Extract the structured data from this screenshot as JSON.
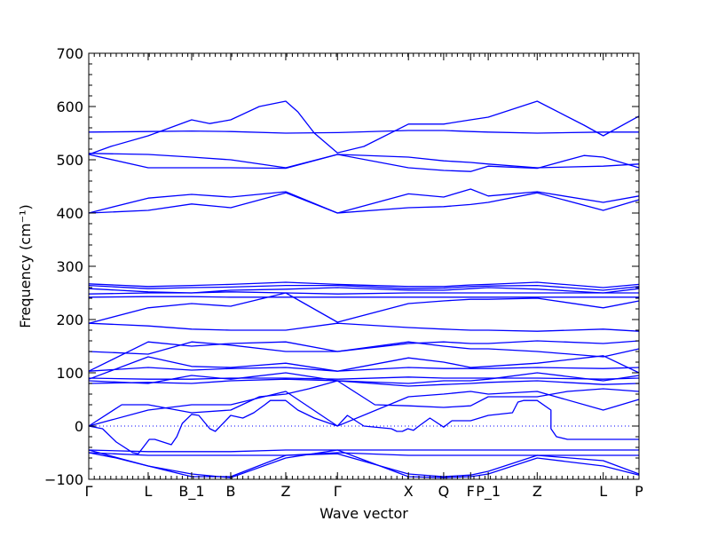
{
  "chart_data": {
    "type": "line",
    "title": "",
    "xlabel": "Wave vector",
    "ylabel": "Frequency (cm⁻¹)",
    "ylim": [
      -100,
      700
    ],
    "yticks": [
      -100,
      0,
      100,
      200,
      300,
      400,
      500,
      600,
      700
    ],
    "x_points": [
      {
        "label": "Γ",
        "x": 0.0
      },
      {
        "label": "L",
        "x": 0.108
      },
      {
        "label": "B_1",
        "x": 0.187
      },
      {
        "label": "B",
        "x": 0.258
      },
      {
        "label": "Z",
        "x": 0.358
      },
      {
        "label": "Γ",
        "x": 0.452
      },
      {
        "label": "X",
        "x": 0.581
      },
      {
        "label": "Q",
        "x": 0.645
      },
      {
        "label": "F",
        "x": 0.694
      },
      {
        "label": "P_1",
        "x": 0.726
      },
      {
        "label": "Z",
        "x": 0.815
      },
      {
        "label": "L",
        "x": 0.935
      },
      {
        "label": "P",
        "x": 1.0
      }
    ],
    "zero_line": {
      "y": 0,
      "style": "dotted"
    },
    "line_color": "#0000ff",
    "series": [
      {
        "x": [
          0,
          0.108,
          0.187,
          0.258,
          0.358,
          0.452,
          0.581,
          0.645,
          0.694,
          0.726,
          0.815,
          0.935,
          1.0
        ],
        "y": [
          552,
          553,
          554,
          553,
          550,
          551,
          555,
          555,
          553,
          552,
          550,
          552,
          552
        ]
      },
      {
        "x": [
          0,
          0.04,
          0.108,
          0.187,
          0.22,
          0.258,
          0.31,
          0.358,
          0.38,
          0.41,
          0.452,
          0.5,
          0.581,
          0.645,
          0.694,
          0.726,
          0.815,
          0.9,
          0.935,
          1.0
        ],
        "y": [
          510,
          525,
          545,
          575,
          568,
          575,
          600,
          610,
          590,
          550,
          513,
          525,
          567,
          567,
          575,
          580,
          610,
          565,
          545,
          582
        ]
      },
      {
        "x": [
          0,
          0.108,
          0.187,
          0.258,
          0.358,
          0.452,
          0.581,
          0.645,
          0.694,
          0.726,
          0.815,
          0.935,
          1.0
        ],
        "y": [
          512,
          510,
          505,
          500,
          485,
          510,
          505,
          498,
          495,
          492,
          485,
          488,
          492
        ]
      },
      {
        "x": [
          0,
          0.108,
          0.187,
          0.258,
          0.358,
          0.452,
          0.581,
          0.645,
          0.694,
          0.726,
          0.815,
          0.9,
          0.935,
          1.0
        ],
        "y": [
          510,
          485,
          485,
          485,
          484,
          510,
          485,
          480,
          478,
          488,
          484,
          508,
          505,
          485
        ]
      },
      {
        "x": [
          0,
          0.108,
          0.187,
          0.258,
          0.358,
          0.452,
          0.581,
          0.645,
          0.694,
          0.726,
          0.815,
          0.935,
          1.0
        ],
        "y": [
          400,
          428,
          435,
          430,
          440,
          400,
          436,
          430,
          445,
          432,
          440,
          420,
          432
        ]
      },
      {
        "x": [
          0,
          0.108,
          0.187,
          0.258,
          0.358,
          0.452,
          0.581,
          0.645,
          0.694,
          0.726,
          0.815,
          0.935,
          1.0
        ],
        "y": [
          400,
          405,
          417,
          410,
          438,
          400,
          410,
          412,
          416,
          420,
          438,
          405,
          425
        ]
      },
      {
        "x": [
          0,
          0.108,
          0.187,
          0.258,
          0.358,
          0.452,
          0.581,
          0.645,
          0.694,
          0.726,
          0.815,
          0.935,
          1.0
        ],
        "y": [
          267,
          262,
          264,
          266,
          270,
          266,
          262,
          262,
          265,
          266,
          270,
          260,
          266
        ]
      },
      {
        "x": [
          0,
          0.108,
          0.187,
          0.258,
          0.358,
          0.452,
          0.581,
          0.645,
          0.694,
          0.726,
          0.815,
          0.935,
          1.0
        ],
        "y": [
          264,
          258,
          260,
          261,
          264,
          264,
          258,
          259,
          262,
          263,
          264,
          255,
          262
        ]
      },
      {
        "x": [
          0,
          0.108,
          0.187,
          0.258,
          0.358,
          0.452,
          0.581,
          0.645,
          0.694,
          0.726,
          0.815,
          0.935,
          1.0
        ],
        "y": [
          258,
          252,
          250,
          255,
          257,
          260,
          255,
          255,
          258,
          260,
          257,
          250,
          258
        ]
      },
      {
        "x": [
          0,
          0.108,
          0.187,
          0.258,
          0.358,
          0.452,
          0.581,
          0.645,
          0.694,
          0.726,
          0.815,
          0.935,
          1.0
        ],
        "y": [
          248,
          250,
          250,
          252,
          250,
          248,
          250,
          250,
          250,
          250,
          250,
          250,
          250
        ]
      },
      {
        "x": [
          0,
          0.108,
          0.187,
          0.258,
          0.358,
          0.452,
          0.581,
          0.645,
          0.694,
          0.726,
          0.815,
          0.935,
          1.0
        ],
        "y": [
          242,
          243,
          243,
          242,
          242,
          242,
          242,
          242,
          242,
          242,
          242,
          242,
          242
        ]
      },
      {
        "x": [
          0,
          0.108,
          0.187,
          0.258,
          0.358,
          0.452,
          0.581,
          0.645,
          0.694,
          0.726,
          0.815,
          0.935,
          1.0
        ],
        "y": [
          193,
          222,
          230,
          225,
          250,
          195,
          230,
          235,
          238,
          238,
          240,
          222,
          235
        ]
      },
      {
        "x": [
          0,
          0.108,
          0.187,
          0.258,
          0.358,
          0.452,
          0.581,
          0.645,
          0.694,
          0.726,
          0.815,
          0.935,
          1.0
        ],
        "y": [
          193,
          188,
          182,
          180,
          180,
          193,
          185,
          182,
          180,
          180,
          178,
          182,
          178
        ]
      },
      {
        "x": [
          0,
          0.108,
          0.187,
          0.258,
          0.358,
          0.452,
          0.581,
          0.645,
          0.694,
          0.726,
          0.815,
          0.935,
          1.0
        ],
        "y": [
          103,
          158,
          150,
          155,
          158,
          140,
          155,
          158,
          155,
          155,
          160,
          155,
          160
        ]
      },
      {
        "x": [
          0,
          0.108,
          0.187,
          0.258,
          0.358,
          0.452,
          0.581,
          0.645,
          0.694,
          0.726,
          0.815,
          0.935,
          1.0
        ],
        "y": [
          140,
          135,
          158,
          152,
          140,
          140,
          158,
          150,
          145,
          145,
          140,
          130,
          145
        ]
      },
      {
        "x": [
          0,
          0.108,
          0.187,
          0.258,
          0.358,
          0.452,
          0.581,
          0.645,
          0.694,
          0.726,
          0.815,
          0.935,
          1.0
        ],
        "y": [
          88,
          130,
          112,
          110,
          118,
          103,
          128,
          120,
          110,
          112,
          118,
          132,
          100
        ]
      },
      {
        "x": [
          0,
          0.108,
          0.187,
          0.258,
          0.358,
          0.452,
          0.581,
          0.645,
          0.694,
          0.726,
          0.815,
          0.935,
          1.0
        ],
        "y": [
          103,
          110,
          105,
          108,
          110,
          103,
          110,
          108,
          108,
          108,
          110,
          108,
          110
        ]
      },
      {
        "x": [
          0,
          0.108,
          0.187,
          0.258,
          0.358,
          0.452,
          0.581,
          0.645,
          0.694,
          0.726,
          0.815,
          0.935,
          1.0
        ],
        "y": [
          90,
          88,
          88,
          90,
          90,
          88,
          92,
          90,
          90,
          90,
          90,
          88,
          90
        ]
      },
      {
        "x": [
          0,
          0.108,
          0.187,
          0.258,
          0.358,
          0.452,
          0.581,
          0.645,
          0.694,
          0.726,
          0.815,
          0.935,
          1.0
        ],
        "y": [
          85,
          80,
          95,
          88,
          100,
          85,
          80,
          85,
          85,
          88,
          100,
          85,
          95
        ]
      },
      {
        "x": [
          0,
          0.108,
          0.187,
          0.258,
          0.358,
          0.452,
          0.581,
          0.645,
          0.694,
          0.726,
          0.815,
          0.935,
          1.0
        ],
        "y": [
          80,
          82,
          80,
          85,
          88,
          85,
          75,
          78,
          80,
          82,
          85,
          78,
          80
        ]
      },
      {
        "x": [
          0,
          0.06,
          0.108,
          0.187,
          0.258,
          0.31,
          0.358,
          0.4,
          0.452,
          0.52,
          0.581,
          0.645,
          0.694,
          0.726,
          0.815,
          0.87,
          0.935,
          1.0
        ],
        "y": [
          0,
          40,
          40,
          25,
          30,
          55,
          60,
          70,
          85,
          40,
          38,
          35,
          38,
          55,
          55,
          65,
          70,
          65
        ]
      },
      {
        "x": [
          0,
          0.108,
          0.187,
          0.258,
          0.358,
          0.452,
          0.581,
          0.645,
          0.694,
          0.726,
          0.815,
          0.935,
          1.0
        ],
        "y": [
          0,
          30,
          40,
          40,
          65,
          0,
          55,
          60,
          65,
          60,
          65,
          30,
          50
        ]
      },
      {
        "x": [
          0,
          0.025,
          0.05,
          0.08,
          0.09,
          0.11,
          0.12,
          0.15,
          0.16,
          0.17,
          0.187,
          0.2,
          0.22,
          0.23,
          0.258,
          0.28,
          0.3,
          0.32,
          0.33,
          0.358,
          0.38,
          0.41,
          0.452,
          0.47,
          0.5,
          0.55,
          0.56,
          0.57,
          0.58,
          0.59,
          0.6,
          0.62,
          0.645,
          0.66,
          0.694,
          0.726,
          0.77,
          0.78,
          0.79,
          0.8,
          0.815,
          0.84,
          0.84,
          0.85,
          0.87,
          0.935,
          1.0
        ],
        "y": [
          0,
          -5,
          -30,
          -50,
          -52,
          -25,
          -25,
          -35,
          -20,
          5,
          22,
          20,
          -5,
          -10,
          20,
          15,
          25,
          40,
          48,
          48,
          30,
          15,
          0,
          20,
          0,
          -5,
          -10,
          -10,
          -5,
          -8,
          0,
          15,
          -2,
          10,
          10,
          20,
          25,
          45,
          48,
          48,
          48,
          30,
          -5,
          -20,
          -25,
          -25,
          -25
        ]
      },
      {
        "x": [
          0,
          0.108,
          0.187,
          0.258,
          0.358,
          0.452,
          0.581,
          0.645,
          0.694,
          0.726,
          0.815,
          0.935,
          1.0
        ],
        "y": [
          -45,
          -48,
          -48,
          -48,
          -45,
          -45,
          -45,
          -45,
          -45,
          -45,
          -45,
          -45,
          -45
        ]
      },
      {
        "x": [
          0,
          0.108,
          0.187,
          0.258,
          0.358,
          0.452,
          0.581,
          0.645,
          0.694,
          0.726,
          0.815,
          0.935,
          1.0
        ],
        "y": [
          -50,
          -55,
          -55,
          -55,
          -55,
          -50,
          -55,
          -55,
          -55,
          -55,
          -55,
          -55,
          -55
        ]
      },
      {
        "x": [
          0,
          0.05,
          0.108,
          0.187,
          0.258,
          0.358,
          0.452,
          0.581,
          0.645,
          0.694,
          0.726,
          0.815,
          0.935,
          1.0
        ],
        "y": [
          -50,
          -60,
          -75,
          -95,
          -95,
          -55,
          -52,
          -90,
          -95,
          -92,
          -85,
          -55,
          -65,
          -90
        ]
      },
      {
        "x": [
          0,
          0.108,
          0.187,
          0.258,
          0.358,
          0.452,
          0.581,
          0.645,
          0.694,
          0.726,
          0.815,
          0.935,
          1.0
        ],
        "y": [
          -45,
          -75,
          -90,
          -97,
          -60,
          -45,
          -95,
          -97,
          -95,
          -90,
          -60,
          -75,
          -92
        ]
      }
    ]
  }
}
